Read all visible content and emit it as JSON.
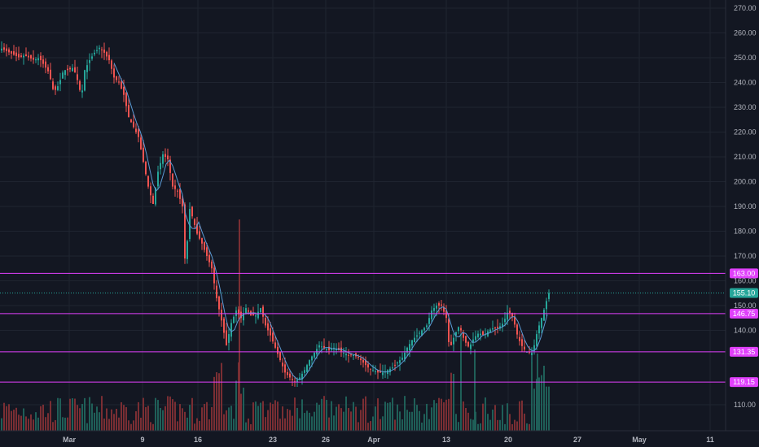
{
  "chart_data": {
    "type": "candlestick",
    "title": "",
    "x_tick_labels": [
      "Mar",
      "9",
      "16",
      "23",
      "26",
      "Apr",
      "13",
      "20",
      "27",
      "May",
      "11"
    ],
    "y_tick_labels": [
      "270.00",
      "260.00",
      "250.00",
      "240.00",
      "230.00",
      "220.00",
      "210.00",
      "200.00",
      "190.00",
      "180.00",
      "170.00",
      "160.00",
      "150.00",
      "140.00",
      "110.00"
    ],
    "ylim": [
      100,
      274
    ],
    "grid": true,
    "horizontal_levels": [
      {
        "value": 163.0,
        "label": "163.00",
        "color": "#e040fb"
      },
      {
        "value": 146.75,
        "label": "146.75",
        "color": "#e040fb"
      },
      {
        "value": 131.35,
        "label": "131.35",
        "color": "#e040fb"
      },
      {
        "value": 119.15,
        "label": "119.15",
        "color": "#e040fb"
      }
    ],
    "last_price": {
      "value": 155.1,
      "label": "155.10",
      "color": "#26a69a"
    },
    "close_path": [
      [
        0,
        254
      ],
      [
        6,
        253
      ],
      [
        12,
        252
      ],
      [
        18,
        251
      ],
      [
        24,
        250
      ],
      [
        30,
        251
      ],
      [
        36,
        250
      ],
      [
        42,
        249
      ],
      [
        48,
        250
      ],
      [
        54,
        247
      ],
      [
        60,
        244
      ],
      [
        66,
        236
      ],
      [
        72,
        239
      ],
      [
        78,
        245
      ],
      [
        84,
        245
      ],
      [
        90,
        246
      ],
      [
        96,
        240
      ],
      [
        100,
        234
      ],
      [
        104,
        245
      ],
      [
        110,
        249
      ],
      [
        116,
        252
      ],
      [
        122,
        254
      ],
      [
        128,
        252
      ],
      [
        134,
        249
      ],
      [
        140,
        242
      ],
      [
        146,
        240
      ],
      [
        152,
        235
      ],
      [
        158,
        226
      ],
      [
        164,
        222
      ],
      [
        170,
        218
      ],
      [
        176,
        208
      ],
      [
        182,
        198
      ],
      [
        188,
        191
      ],
      [
        194,
        204
      ],
      [
        200,
        211
      ],
      [
        206,
        209
      ],
      [
        212,
        198
      ],
      [
        218,
        196
      ],
      [
        224,
        190
      ],
      [
        228,
        162
      ],
      [
        232,
        190
      ],
      [
        236,
        186
      ],
      [
        242,
        179
      ],
      [
        248,
        175
      ],
      [
        254,
        170
      ],
      [
        260,
        165
      ],
      [
        266,
        153
      ],
      [
        272,
        144
      ],
      [
        278,
        134
      ],
      [
        284,
        143
      ],
      [
        290,
        148
      ],
      [
        296,
        145
      ],
      [
        302,
        149
      ],
      [
        308,
        146
      ],
      [
        314,
        146
      ],
      [
        320,
        149
      ],
      [
        326,
        142
      ],
      [
        332,
        138
      ],
      [
        338,
        133
      ],
      [
        344,
        128
      ],
      [
        350,
        123
      ],
      [
        356,
        121
      ],
      [
        362,
        119
      ],
      [
        368,
        121
      ],
      [
        374,
        124
      ],
      [
        380,
        128
      ],
      [
        386,
        131
      ],
      [
        392,
        134
      ],
      [
        398,
        133
      ],
      [
        404,
        132
      ],
      [
        410,
        133
      ],
      [
        416,
        132
      ],
      [
        422,
        131
      ],
      [
        428,
        130
      ],
      [
        434,
        130
      ],
      [
        440,
        129
      ],
      [
        446,
        127
      ],
      [
        452,
        125
      ],
      [
        458,
        124
      ],
      [
        464,
        123
      ],
      [
        470,
        123
      ],
      [
        476,
        124
      ],
      [
        482,
        125
      ],
      [
        488,
        127
      ],
      [
        494,
        129
      ],
      [
        500,
        133
      ],
      [
        506,
        136
      ],
      [
        512,
        138
      ],
      [
        518,
        140
      ],
      [
        524,
        142
      ],
      [
        530,
        148
      ],
      [
        536,
        150
      ],
      [
        542,
        150
      ],
      [
        548,
        145
      ],
      [
        552,
        132
      ],
      [
        558,
        138
      ],
      [
        564,
        142
      ],
      [
        570,
        136
      ],
      [
        576,
        133
      ],
      [
        582,
        137
      ],
      [
        588,
        139
      ],
      [
        594,
        138
      ],
      [
        600,
        140
      ],
      [
        606,
        141
      ],
      [
        612,
        141
      ],
      [
        618,
        143
      ],
      [
        624,
        148
      ],
      [
        630,
        145
      ],
      [
        636,
        137
      ],
      [
        642,
        133
      ],
      [
        648,
        131
      ],
      [
        654,
        131
      ],
      [
        660,
        140
      ],
      [
        666,
        146
      ],
      [
        672,
        153
      ],
      [
        674,
        155.1
      ]
    ]
  }
}
